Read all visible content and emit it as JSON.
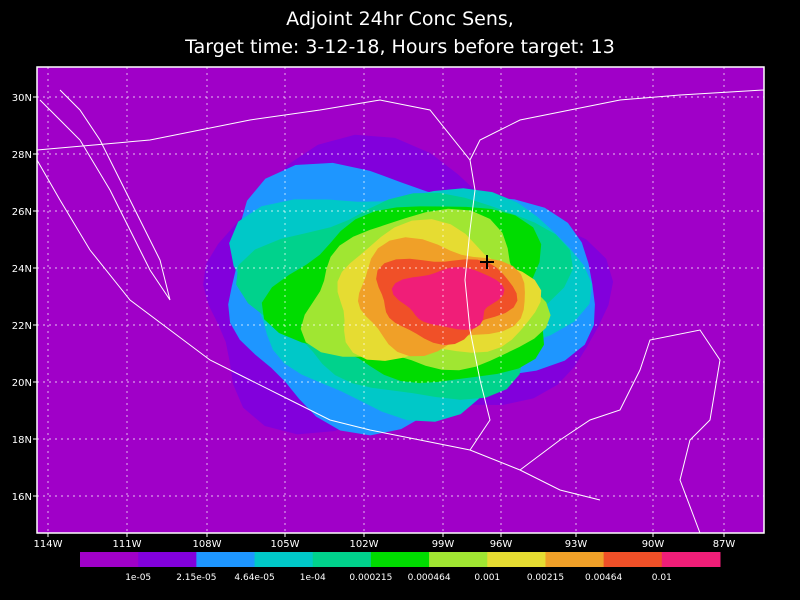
{
  "title": [
    "Adjoint 24hr Conc Sens,",
    "Target time: 3-12-18, Hours before target: 13"
  ],
  "lat_labels": [
    "30N",
    "28N",
    "26N",
    "24N",
    "22N",
    "20N",
    "18N",
    "16N"
  ],
  "lon_labels": [
    "114W",
    "111W",
    "108W",
    "105W",
    "102W",
    "99W",
    "96W",
    "93W",
    "90W",
    "87W"
  ],
  "colorbar": {
    "colors": [
      "#a000c8",
      "#8200dc",
      "#1e96ff",
      "#00c8c8",
      "#00d28c",
      "#00dc00",
      "#a0e632",
      "#e6dc32",
      "#f0a028",
      "#f05028",
      "#f01e78"
    ],
    "labels": [
      "1e-05",
      "2.15e-05",
      "4.64e-05",
      "1e-04",
      "0.000215",
      "0.000464",
      "0.001",
      "0.00215",
      "0.00464",
      "0.01"
    ]
  }
}
